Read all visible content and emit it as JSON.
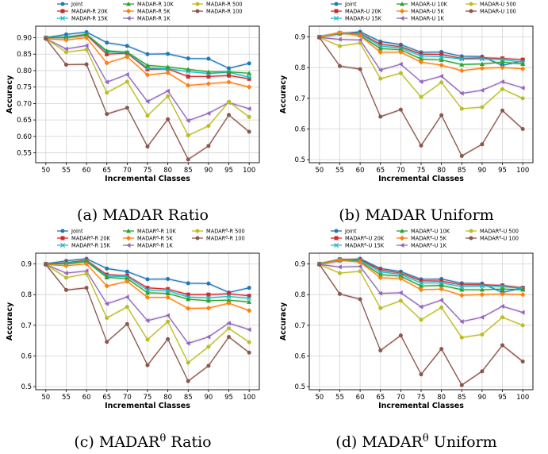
{
  "chart_data": [
    {
      "type": "line",
      "caption": "(a) MADAR Ratio",
      "xlabel": "Incremental Classes",
      "ylabel": "Accuracy",
      "x": [
        50,
        55,
        60,
        65,
        70,
        75,
        80,
        85,
        90,
        95,
        100
      ],
      "ylim": [
        0.52,
        0.935
      ],
      "yticks": [
        0.55,
        0.6,
        0.65,
        0.7,
        0.75,
        0.8,
        0.85,
        0.9
      ],
      "grid": true,
      "legend_position": "top",
      "series": [
        {
          "name": "Joint",
          "color": "#1f77b4",
          "marker": "circle",
          "values": [
            0.9,
            0.91,
            0.917,
            0.885,
            0.875,
            0.85,
            0.851,
            0.837,
            0.836,
            0.807,
            0.822
          ]
        },
        {
          "name": "MADAR-R 20K",
          "color": "#d62728",
          "marker": "square",
          "values": [
            0.9,
            0.9,
            0.908,
            0.85,
            0.853,
            0.804,
            0.805,
            0.782,
            0.782,
            0.785,
            0.775
          ]
        },
        {
          "name": "MADAR-R 15K",
          "color": "#17becf",
          "marker": "x",
          "values": [
            0.9,
            0.902,
            0.91,
            0.857,
            0.855,
            0.808,
            0.806,
            0.797,
            0.791,
            0.795,
            0.78
          ]
        },
        {
          "name": "MADAR-R 10K",
          "color": "#2ca02c",
          "marker": "triangle",
          "values": [
            0.9,
            0.9,
            0.91,
            0.86,
            0.856,
            0.816,
            0.811,
            0.804,
            0.796,
            0.796,
            0.792
          ]
        },
        {
          "name": "MADAR-R 5K",
          "color": "#ff7f0e",
          "marker": "diamond",
          "values": [
            0.897,
            0.893,
            0.9,
            0.823,
            0.842,
            0.787,
            0.793,
            0.755,
            0.76,
            0.765,
            0.75
          ]
        },
        {
          "name": "MADAR-R 1K",
          "color": "#9467bd",
          "marker": "left-triangle",
          "values": [
            0.897,
            0.866,
            0.876,
            0.765,
            0.788,
            0.706,
            0.738,
            0.648,
            0.67,
            0.703,
            0.684
          ]
        },
        {
          "name": "MADAR-R 500",
          "color": "#bcbd22",
          "marker": "circle",
          "values": [
            0.897,
            0.856,
            0.864,
            0.733,
            0.766,
            0.663,
            0.722,
            0.603,
            0.632,
            0.705,
            0.659
          ]
        },
        {
          "name": "MADAR-R 100",
          "color": "#8c564b",
          "marker": "circle",
          "values": [
            0.897,
            0.818,
            0.819,
            0.668,
            0.687,
            0.569,
            0.652,
            0.53,
            0.571,
            0.665,
            0.614
          ]
        }
      ]
    },
    {
      "type": "line",
      "caption": "(b) MADAR Uniform",
      "xlabel": "Incremental Classes",
      "ylabel": "Accuracy",
      "x": [
        50,
        55,
        60,
        65,
        70,
        75,
        80,
        85,
        90,
        95,
        100
      ],
      "ylim": [
        0.49,
        0.935
      ],
      "yticks": [
        0.5,
        0.6,
        0.7,
        0.8,
        0.9
      ],
      "grid": true,
      "legend_position": "top",
      "series": [
        {
          "name": "Joint",
          "color": "#1f77b4",
          "marker": "circle",
          "values": [
            0.9,
            0.91,
            0.917,
            0.885,
            0.875,
            0.85,
            0.851,
            0.837,
            0.836,
            0.807,
            0.822
          ]
        },
        {
          "name": "MADAR-U 20K",
          "color": "#d62728",
          "marker": "square",
          "values": [
            0.9,
            0.912,
            0.912,
            0.876,
            0.868,
            0.844,
            0.843,
            0.83,
            0.832,
            0.83,
            0.826
          ]
        },
        {
          "name": "MADAR-U 15K",
          "color": "#17becf",
          "marker": "x",
          "values": [
            0.9,
            0.912,
            0.91,
            0.87,
            0.864,
            0.838,
            0.835,
            0.828,
            0.828,
            0.826,
            0.818
          ]
        },
        {
          "name": "MADAR-U 10K",
          "color": "#2ca02c",
          "marker": "triangle",
          "values": [
            0.9,
            0.913,
            0.905,
            0.862,
            0.858,
            0.828,
            0.825,
            0.81,
            0.812,
            0.818,
            0.812
          ]
        },
        {
          "name": "MADAR-U 5K",
          "color": "#ff7f0e",
          "marker": "diamond",
          "values": [
            0.898,
            0.914,
            0.904,
            0.85,
            0.85,
            0.818,
            0.808,
            0.79,
            0.798,
            0.8,
            0.796
          ]
        },
        {
          "name": "MADAR-U 1K",
          "color": "#9467bd",
          "marker": "left-triangle",
          "values": [
            0.898,
            0.892,
            0.89,
            0.792,
            0.811,
            0.754,
            0.772,
            0.716,
            0.726,
            0.754,
            0.734
          ]
        },
        {
          "name": "MADAR-U 500",
          "color": "#bcbd22",
          "marker": "circle",
          "values": [
            0.898,
            0.87,
            0.88,
            0.764,
            0.782,
            0.704,
            0.752,
            0.666,
            0.671,
            0.73,
            0.7
          ]
        },
        {
          "name": "MADAR-U 100",
          "color": "#8c564b",
          "marker": "circle",
          "values": [
            0.898,
            0.805,
            0.795,
            0.64,
            0.663,
            0.546,
            0.645,
            0.512,
            0.55,
            0.66,
            0.6
          ]
        }
      ]
    },
    {
      "type": "line",
      "caption": "(c) MADAR",
      "caption_sup": "θ",
      "caption_tail": " Ratio",
      "xlabel": "Incremental Classes",
      "ylabel": "Accuracy",
      "x": [
        50,
        55,
        60,
        65,
        70,
        75,
        80,
        85,
        90,
        95,
        100
      ],
      "ylim": [
        0.49,
        0.935
      ],
      "yticks": [
        0.5,
        0.6,
        0.7,
        0.8,
        0.9
      ],
      "grid": true,
      "legend_position": "top",
      "series": [
        {
          "name": "Joint",
          "color": "#1f77b4",
          "marker": "circle",
          "values": [
            0.9,
            0.91,
            0.917,
            0.885,
            0.875,
            0.85,
            0.851,
            0.837,
            0.836,
            0.807,
            0.822
          ]
        },
        {
          "name": "MADAR",
          "name_sup": "θ",
          "name_tail": "-R 20K",
          "color": "#d62728",
          "marker": "square",
          "values": [
            0.9,
            0.904,
            0.912,
            0.865,
            0.862,
            0.822,
            0.818,
            0.8,
            0.8,
            0.803,
            0.796
          ]
        },
        {
          "name": "MADAR",
          "name_sup": "θ",
          "name_tail": "-R 15K",
          "color": "#17becf",
          "marker": "x",
          "values": [
            0.9,
            0.902,
            0.91,
            0.86,
            0.858,
            0.815,
            0.813,
            0.792,
            0.79,
            0.794,
            0.788
          ]
        },
        {
          "name": "MADAR",
          "name_sup": "θ",
          "name_tail": "-R 10K",
          "color": "#2ca02c",
          "marker": "triangle",
          "values": [
            0.9,
            0.9,
            0.908,
            0.856,
            0.852,
            0.806,
            0.804,
            0.785,
            0.78,
            0.782,
            0.776
          ]
        },
        {
          "name": "MADAR",
          "name_sup": "θ",
          "name_tail": "-R 5K",
          "color": "#ff7f0e",
          "marker": "diamond",
          "values": [
            0.898,
            0.894,
            0.9,
            0.828,
            0.843,
            0.791,
            0.791,
            0.755,
            0.756,
            0.772,
            0.748
          ]
        },
        {
          "name": "MADAR",
          "name_sup": "θ",
          "name_tail": "-R 1K",
          "color": "#9467bd",
          "marker": "left-triangle",
          "values": [
            0.898,
            0.87,
            0.877,
            0.77,
            0.792,
            0.715,
            0.732,
            0.641,
            0.662,
            0.707,
            0.686
          ]
        },
        {
          "name": "MADAR",
          "name_sup": "θ",
          "name_tail": "-R 500",
          "color": "#bcbd22",
          "marker": "circle",
          "values": [
            0.898,
            0.855,
            0.868,
            0.724,
            0.76,
            0.653,
            0.712,
            0.578,
            0.63,
            0.69,
            0.645
          ]
        },
        {
          "name": "MADAR",
          "name_sup": "θ",
          "name_tail": "-R 100",
          "color": "#8c564b",
          "marker": "circle",
          "values": [
            0.898,
            0.815,
            0.822,
            0.646,
            0.704,
            0.57,
            0.655,
            0.518,
            0.568,
            0.662,
            0.611
          ]
        }
      ]
    },
    {
      "type": "line",
      "caption": "(d) MADAR",
      "caption_sup": "θ",
      "caption_tail": " Uniform",
      "xlabel": "Incremental Classes",
      "ylabel": "Accuracy",
      "x": [
        50,
        55,
        60,
        65,
        70,
        75,
        80,
        85,
        90,
        95,
        100
      ],
      "ylim": [
        0.49,
        0.935
      ],
      "yticks": [
        0.5,
        0.6,
        0.7,
        0.8,
        0.9
      ],
      "grid": true,
      "legend_position": "top",
      "series": [
        {
          "name": "Joint",
          "color": "#1f77b4",
          "marker": "circle",
          "values": [
            0.9,
            0.91,
            0.917,
            0.885,
            0.875,
            0.85,
            0.851,
            0.837,
            0.836,
            0.807,
            0.822
          ]
        },
        {
          "name": "MADAR",
          "name_sup": "θ",
          "name_tail": "-U 20K",
          "color": "#d62728",
          "marker": "square",
          "values": [
            0.9,
            0.915,
            0.914,
            0.88,
            0.87,
            0.845,
            0.844,
            0.832,
            0.832,
            0.83,
            0.822
          ]
        },
        {
          "name": "MADAR",
          "name_sup": "θ",
          "name_tail": "-U 15K",
          "color": "#17becf",
          "marker": "x",
          "values": [
            0.9,
            0.913,
            0.912,
            0.874,
            0.866,
            0.838,
            0.838,
            0.826,
            0.828,
            0.826,
            0.82
          ]
        },
        {
          "name": "MADAR",
          "name_sup": "θ",
          "name_tail": "-U 10K",
          "color": "#2ca02c",
          "marker": "triangle",
          "values": [
            0.9,
            0.912,
            0.908,
            0.865,
            0.86,
            0.828,
            0.83,
            0.816,
            0.816,
            0.818,
            0.816
          ]
        },
        {
          "name": "MADAR",
          "name_sup": "θ",
          "name_tail": "-U 5K",
          "color": "#ff7f0e",
          "marker": "diamond",
          "values": [
            0.898,
            0.912,
            0.906,
            0.855,
            0.852,
            0.816,
            0.818,
            0.798,
            0.8,
            0.802,
            0.8
          ]
        },
        {
          "name": "MADAR",
          "name_sup": "θ",
          "name_tail": "-U 1K",
          "color": "#9467bd",
          "marker": "left-triangle",
          "values": [
            0.898,
            0.89,
            0.892,
            0.804,
            0.806,
            0.76,
            0.782,
            0.712,
            0.726,
            0.762,
            0.742
          ]
        },
        {
          "name": "MADAR",
          "name_sup": "θ",
          "name_tail": "-U 500",
          "color": "#bcbd22",
          "marker": "circle",
          "values": [
            0.898,
            0.87,
            0.876,
            0.756,
            0.78,
            0.718,
            0.758,
            0.66,
            0.67,
            0.726,
            0.7
          ]
        },
        {
          "name": "MADAR",
          "name_sup": "θ",
          "name_tail": "-U 100",
          "color": "#8c564b",
          "marker": "circle",
          "values": [
            0.898,
            0.802,
            0.785,
            0.618,
            0.667,
            0.54,
            0.623,
            0.505,
            0.55,
            0.635,
            0.582
          ]
        }
      ]
    }
  ]
}
